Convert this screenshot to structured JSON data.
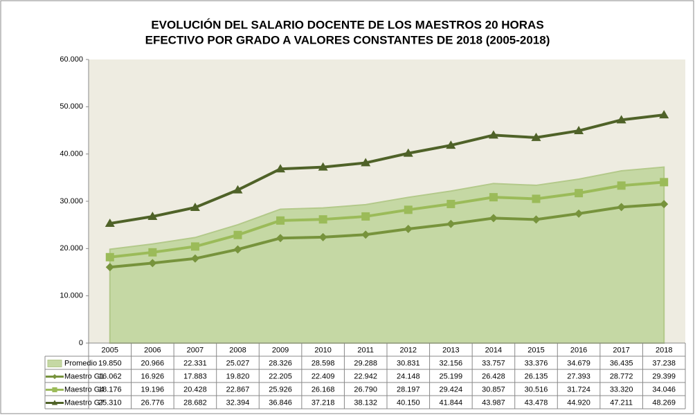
{
  "chart_data": {
    "type": "line",
    "title": [
      "EVOLUCIÓN DEL SALARIO DOCENTE DE LOS MAESTROS 20 HORAS",
      "EFECTIVO POR GRADO A VALORES CONSTANTES DE 2018 (2005-2018)"
    ],
    "categories": [
      "2005",
      "2006",
      "2007",
      "2008",
      "2009",
      "2010",
      "2011",
      "2012",
      "2013",
      "2014",
      "2015",
      "2016",
      "2017",
      "2018"
    ],
    "ylim": [
      0,
      60000
    ],
    "yticks": [
      0,
      {
        "value": 10000,
        "label": "10.000"
      },
      {
        "value": 20000,
        "label": "20.000"
      },
      {
        "value": 30000,
        "label": "30.000"
      },
      {
        "value": 40000,
        "label": "40.000"
      },
      {
        "value": 50000,
        "label": "50.000"
      },
      {
        "value": 60000,
        "label": "60.000"
      }
    ],
    "series": [
      {
        "name": "Promedio",
        "type": "area",
        "color": "#c5d8a4",
        "values": [
          19850,
          20966,
          22331,
          25027,
          28326,
          28598,
          29288,
          30831,
          32156,
          33757,
          33376,
          34679,
          36435,
          37238
        ],
        "value_labels": [
          "19.850",
          "20.966",
          "22.331",
          "25.027",
          "28.326",
          "28.598",
          "29.288",
          "30.831",
          "32.156",
          "33.757",
          "33.376",
          "34.679",
          "36.435",
          "37.238"
        ]
      },
      {
        "name": "Maestro G1",
        "type": "line",
        "marker": "diamond",
        "color": "#77933c",
        "values": [
          16062,
          16926,
          17883,
          19820,
          22205,
          22409,
          22942,
          24148,
          25199,
          26428,
          26135,
          27393,
          28772,
          29399
        ],
        "value_labels": [
          "16.062",
          "16.926",
          "17.883",
          "19.820",
          "22.205",
          "22.409",
          "22.942",
          "24.148",
          "25.199",
          "26.428",
          "26.135",
          "27.393",
          "28.772",
          "29.399"
        ]
      },
      {
        "name": "Maestro G4",
        "type": "line",
        "marker": "square",
        "color": "#9bbb59",
        "values": [
          18176,
          19196,
          20428,
          22867,
          25926,
          26168,
          26790,
          28197,
          29424,
          30857,
          30516,
          31724,
          33320,
          34046
        ],
        "value_labels": [
          "18.176",
          "19.196",
          "20.428",
          "22.867",
          "25.926",
          "26.168",
          "26.790",
          "28.197",
          "29.424",
          "30.857",
          "30.516",
          "31.724",
          "33.320",
          "34.046"
        ]
      },
      {
        "name": "Maestro G7",
        "type": "line",
        "marker": "triangle",
        "color": "#4f6228",
        "values": [
          25310,
          26776,
          28682,
          32394,
          36846,
          37218,
          38132,
          40150,
          41844,
          43987,
          43478,
          44920,
          47211,
          48269
        ],
        "value_labels": [
          "25.310",
          "26.776",
          "28.682",
          "32.394",
          "36.846",
          "37.218",
          "38.132",
          "40.150",
          "41.844",
          "43.987",
          "43.478",
          "44.920",
          "47.211",
          "48.269"
        ]
      }
    ]
  }
}
